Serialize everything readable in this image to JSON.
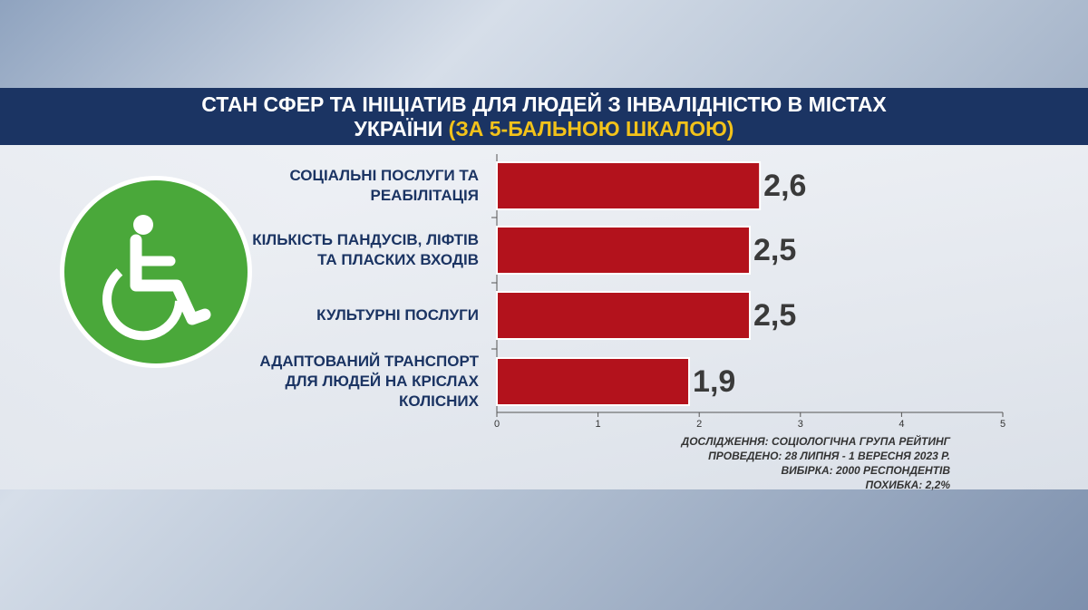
{
  "chart_data": {
    "type": "bar",
    "orientation": "horizontal",
    "title": "СТАН СФЕР ТА ІНІЦІАТИВ ДЛЯ ЛЮДЕЙ З ІНВАЛІДНІСТЮ В МІСТАХ УКРАЇНИ",
    "subtitle": "(ЗА 5-БАЛЬНОЮ ШКАЛОЮ)",
    "categories": [
      "СОЦІАЛЬНІ ПОСЛУГИ ТА РЕАБІЛІТАЦІЯ",
      "КІЛЬКІСТЬ ПАНДУСІВ, ЛІФТІВ ТА ПЛАСКИХ ВХОДІВ",
      "КУЛЬТУРНІ ПОСЛУГИ",
      "АДАПТОВАНИЙ ТРАНСПОРТ ДЛЯ ЛЮДЕЙ НА КРІСЛАХ КОЛІСНИХ"
    ],
    "values": [
      2.6,
      2.5,
      2.5,
      1.9
    ],
    "value_labels": [
      "2,6",
      "2,5",
      "2,5",
      "1,9"
    ],
    "color": "#b3121c",
    "xlim": [
      0,
      5
    ],
    "xticks": [
      0,
      1,
      2,
      3,
      4,
      5
    ],
    "notes": [
      "ДОСЛІДЖЕННЯ: СОЦІОЛОГІЧНА ГРУПА РЕЙТИНГ",
      "ПРОВЕДЕНО: 28 ЛИПНЯ - 1 ВЕРЕСНЯ 2023 Р.",
      "ВИБІРКА: 2000 РЕСПОНДЕНТІВ",
      "ПОХИБКА: 2,2%"
    ]
  }
}
